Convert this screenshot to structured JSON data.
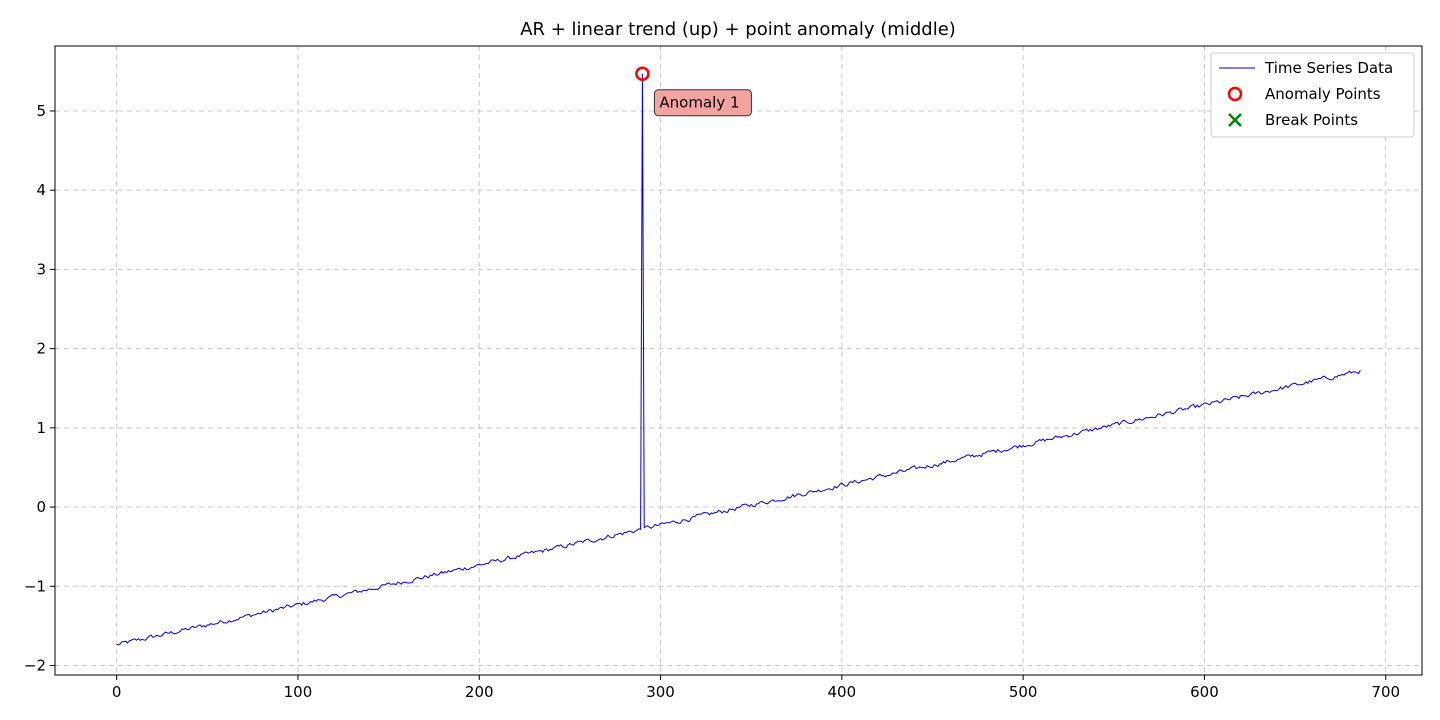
{
  "chart_data": {
    "type": "line",
    "title": "AR + linear trend (up) + point anomaly (middle)",
    "xlabel": "",
    "ylabel": "",
    "xlim": [
      -34,
      720
    ],
    "ylim": [
      -2.12,
      5.82
    ],
    "x_ticks": [
      0,
      100,
      200,
      300,
      400,
      500,
      600,
      700
    ],
    "x_tick_labels": [
      "0",
      "100",
      "200",
      "300",
      "400",
      "500",
      "600",
      "700"
    ],
    "y_ticks": [
      -2,
      -1,
      0,
      1,
      2,
      3,
      4,
      5
    ],
    "y_tick_labels": [
      "−2",
      "−1",
      "0",
      "1",
      "2",
      "3",
      "4",
      "5"
    ],
    "grid": true,
    "legend_position": "top-right",
    "series": [
      {
        "name": "Time Series Data",
        "color": "#0000ee",
        "n_points": 687,
        "trend_start": -1.74,
        "trend_end": 1.72,
        "noise_amplitude": 0.025,
        "spike": {
          "x": 290,
          "y": 5.47
        }
      }
    ],
    "anomaly_points": [
      {
        "x": 290,
        "y": 5.47,
        "label": "Anomaly 1"
      }
    ],
    "break_points": [],
    "legend": {
      "entries": [
        {
          "label": "Time Series Data",
          "marker": "line",
          "color": "#0000ee"
        },
        {
          "label": "Anomaly Points",
          "marker": "circle",
          "color": "#ff0000"
        },
        {
          "label": "Break Points",
          "marker": "x",
          "color": "#008000"
        }
      ]
    },
    "annotation_box_color": "#f4a3a3"
  }
}
